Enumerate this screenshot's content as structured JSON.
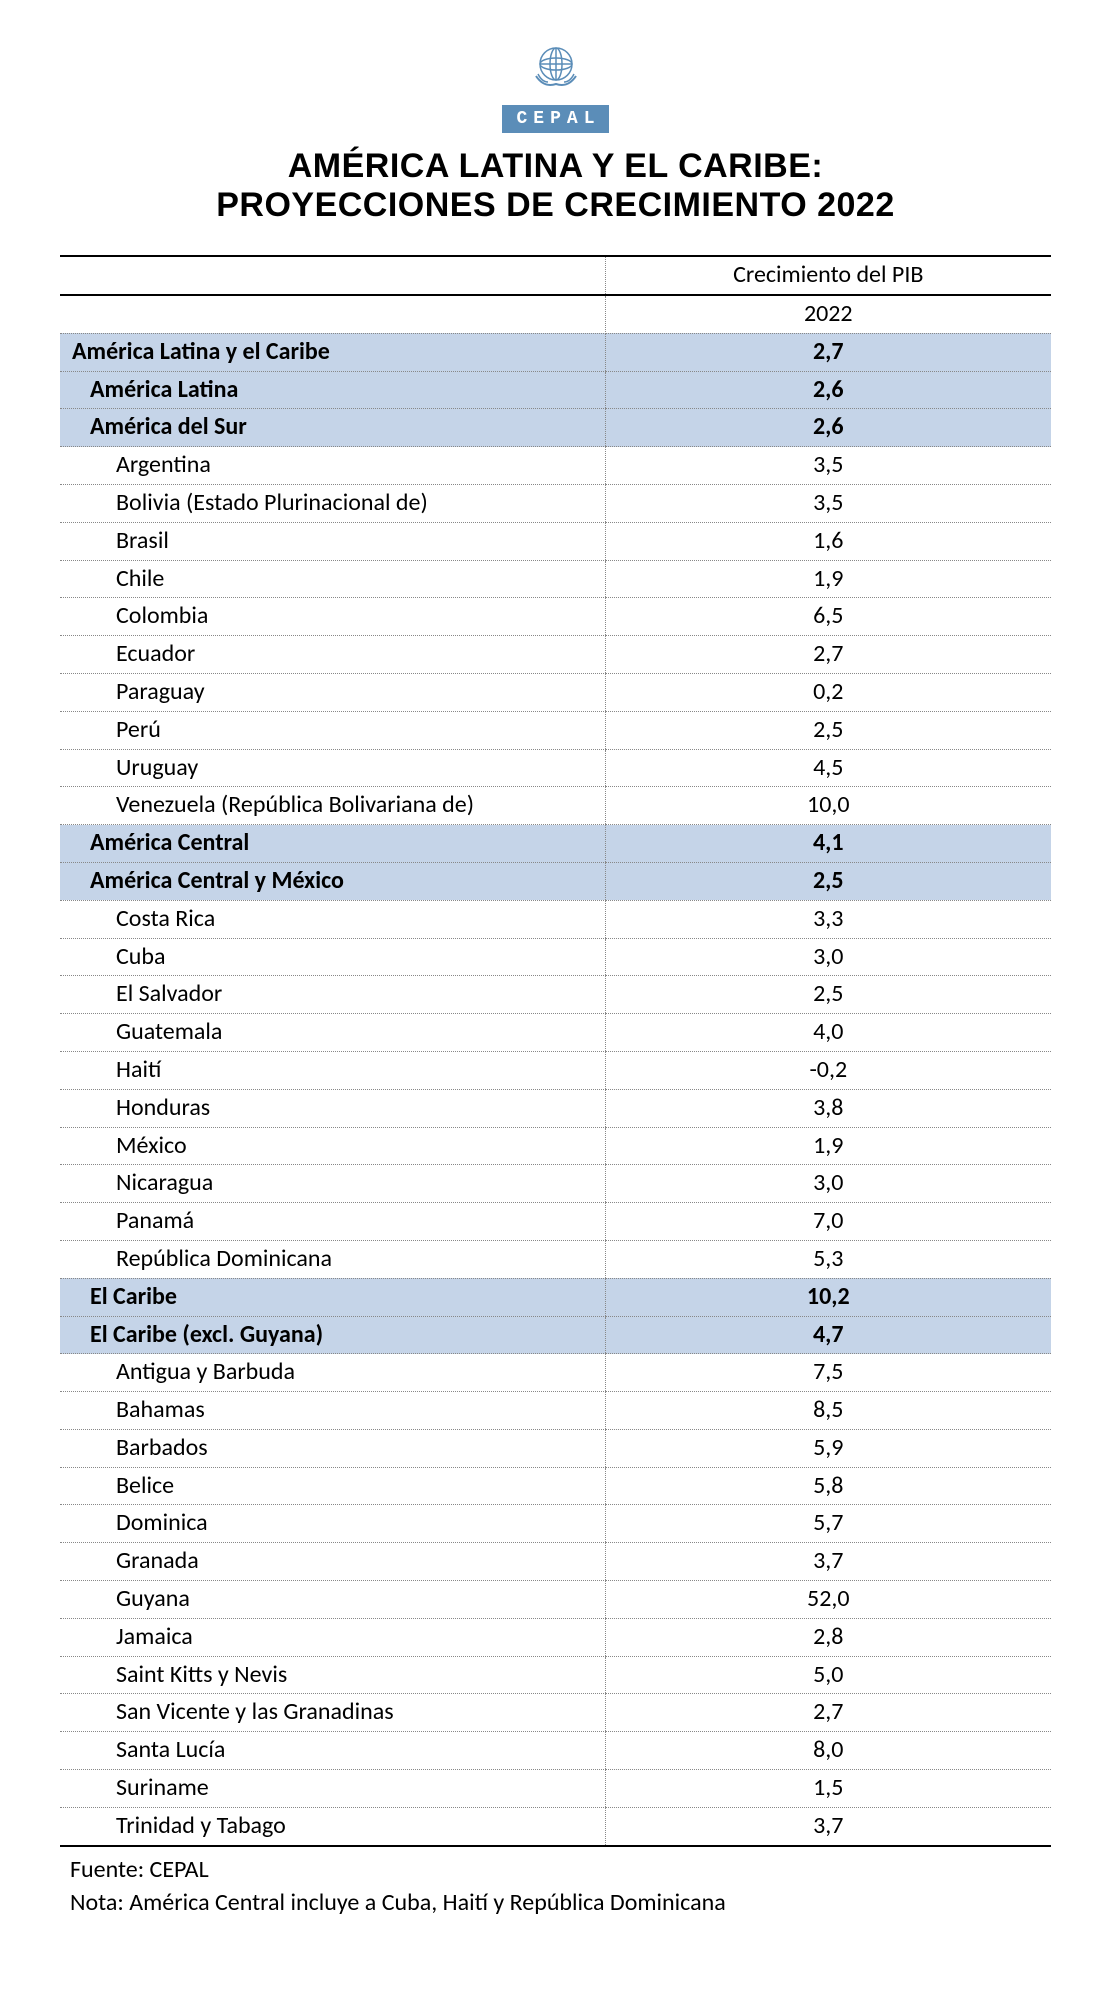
{
  "header": {
    "org_badge": "CEPAL",
    "un_logo_color": "#5b8db8",
    "title_line1": "AMÉRICA LATINA Y EL CARIBE:",
    "title_line2": "PROYECCIONES DE CRECIMIENTO 2022"
  },
  "table": {
    "header_col2_line1": "Crecimiento del PIB",
    "header_col2_line2": "2022",
    "region_bg": "#c5d4e8",
    "border_color": "#888888",
    "rows": [
      {
        "label": "América Latina y el Caribe",
        "value": "2,7",
        "type": "region",
        "indent": 0
      },
      {
        "label": "América Latina",
        "value": "2,6",
        "type": "region",
        "indent": 1
      },
      {
        "label": "América del Sur",
        "value": "2,6",
        "type": "region",
        "indent": 1
      },
      {
        "label": "Argentina",
        "value": "3,5",
        "type": "country",
        "indent": 2
      },
      {
        "label": "Bolivia (Estado Plurinacional de)",
        "value": "3,5",
        "type": "country",
        "indent": 2
      },
      {
        "label": "Brasil",
        "value": "1,6",
        "type": "country",
        "indent": 2
      },
      {
        "label": "Chile",
        "value": "1,9",
        "type": "country",
        "indent": 2
      },
      {
        "label": "Colombia",
        "value": "6,5",
        "type": "country",
        "indent": 2
      },
      {
        "label": "Ecuador",
        "value": "2,7",
        "type": "country",
        "indent": 2
      },
      {
        "label": "Paraguay",
        "value": "0,2",
        "type": "country",
        "indent": 2
      },
      {
        "label": "Perú",
        "value": "2,5",
        "type": "country",
        "indent": 2
      },
      {
        "label": "Uruguay",
        "value": "4,5",
        "type": "country",
        "indent": 2
      },
      {
        "label": "Venezuela (República Bolivariana de)",
        "value": "10,0",
        "type": "country",
        "indent": 2
      },
      {
        "label": "América Central",
        "value": "4,1",
        "type": "region",
        "indent": 1
      },
      {
        "label": "América Central y México",
        "value": "2,5",
        "type": "region",
        "indent": 1
      },
      {
        "label": "Costa Rica",
        "value": "3,3",
        "type": "country",
        "indent": 2
      },
      {
        "label": "Cuba",
        "value": "3,0",
        "type": "country",
        "indent": 2
      },
      {
        "label": "El Salvador",
        "value": "2,5",
        "type": "country",
        "indent": 2
      },
      {
        "label": "Guatemala",
        "value": "4,0",
        "type": "country",
        "indent": 2
      },
      {
        "label": "Haití",
        "value": "-0,2",
        "type": "country",
        "indent": 2
      },
      {
        "label": "Honduras",
        "value": "3,8",
        "type": "country",
        "indent": 2
      },
      {
        "label": "México",
        "value": "1,9",
        "type": "country",
        "indent": 2
      },
      {
        "label": "Nicaragua",
        "value": "3,0",
        "type": "country",
        "indent": 2
      },
      {
        "label": "Panamá",
        "value": "7,0",
        "type": "country",
        "indent": 2
      },
      {
        "label": "República Dominicana",
        "value": "5,3",
        "type": "country",
        "indent": 2
      },
      {
        "label": "El Caribe",
        "value": "10,2",
        "type": "region",
        "indent": 1
      },
      {
        "label": "El Caribe (excl. Guyana)",
        "value": "4,7",
        "type": "region",
        "indent": 1
      },
      {
        "label": "Antigua y Barbuda",
        "value": "7,5",
        "type": "country",
        "indent": 2
      },
      {
        "label": "Bahamas",
        "value": "8,5",
        "type": "country",
        "indent": 2
      },
      {
        "label": "Barbados",
        "value": "5,9",
        "type": "country",
        "indent": 2
      },
      {
        "label": "Belice",
        "value": "5,8",
        "type": "country",
        "indent": 2
      },
      {
        "label": "Dominica",
        "value": "5,7",
        "type": "country",
        "indent": 2
      },
      {
        "label": "Granada",
        "value": "3,7",
        "type": "country",
        "indent": 2
      },
      {
        "label": "Guyana",
        "value": "52,0",
        "type": "country",
        "indent": 2
      },
      {
        "label": "Jamaica",
        "value": "2,8",
        "type": "country",
        "indent": 2
      },
      {
        "label": "Saint Kitts y Nevis",
        "value": "5,0",
        "type": "country",
        "indent": 2
      },
      {
        "label": "San Vicente y las Granadinas",
        "value": "2,7",
        "type": "country",
        "indent": 2
      },
      {
        "label": "Santa Lucía",
        "value": "8,0",
        "type": "country",
        "indent": 2
      },
      {
        "label": "Suriname",
        "value": "1,5",
        "type": "country",
        "indent": 2
      },
      {
        "label": "Trinidad y Tabago",
        "value": "3,7",
        "type": "country",
        "indent": 2
      }
    ]
  },
  "footnotes": {
    "source": "Fuente: CEPAL",
    "note": "Nota: América Central incluye a Cuba, Haití y República Dominicana"
  }
}
